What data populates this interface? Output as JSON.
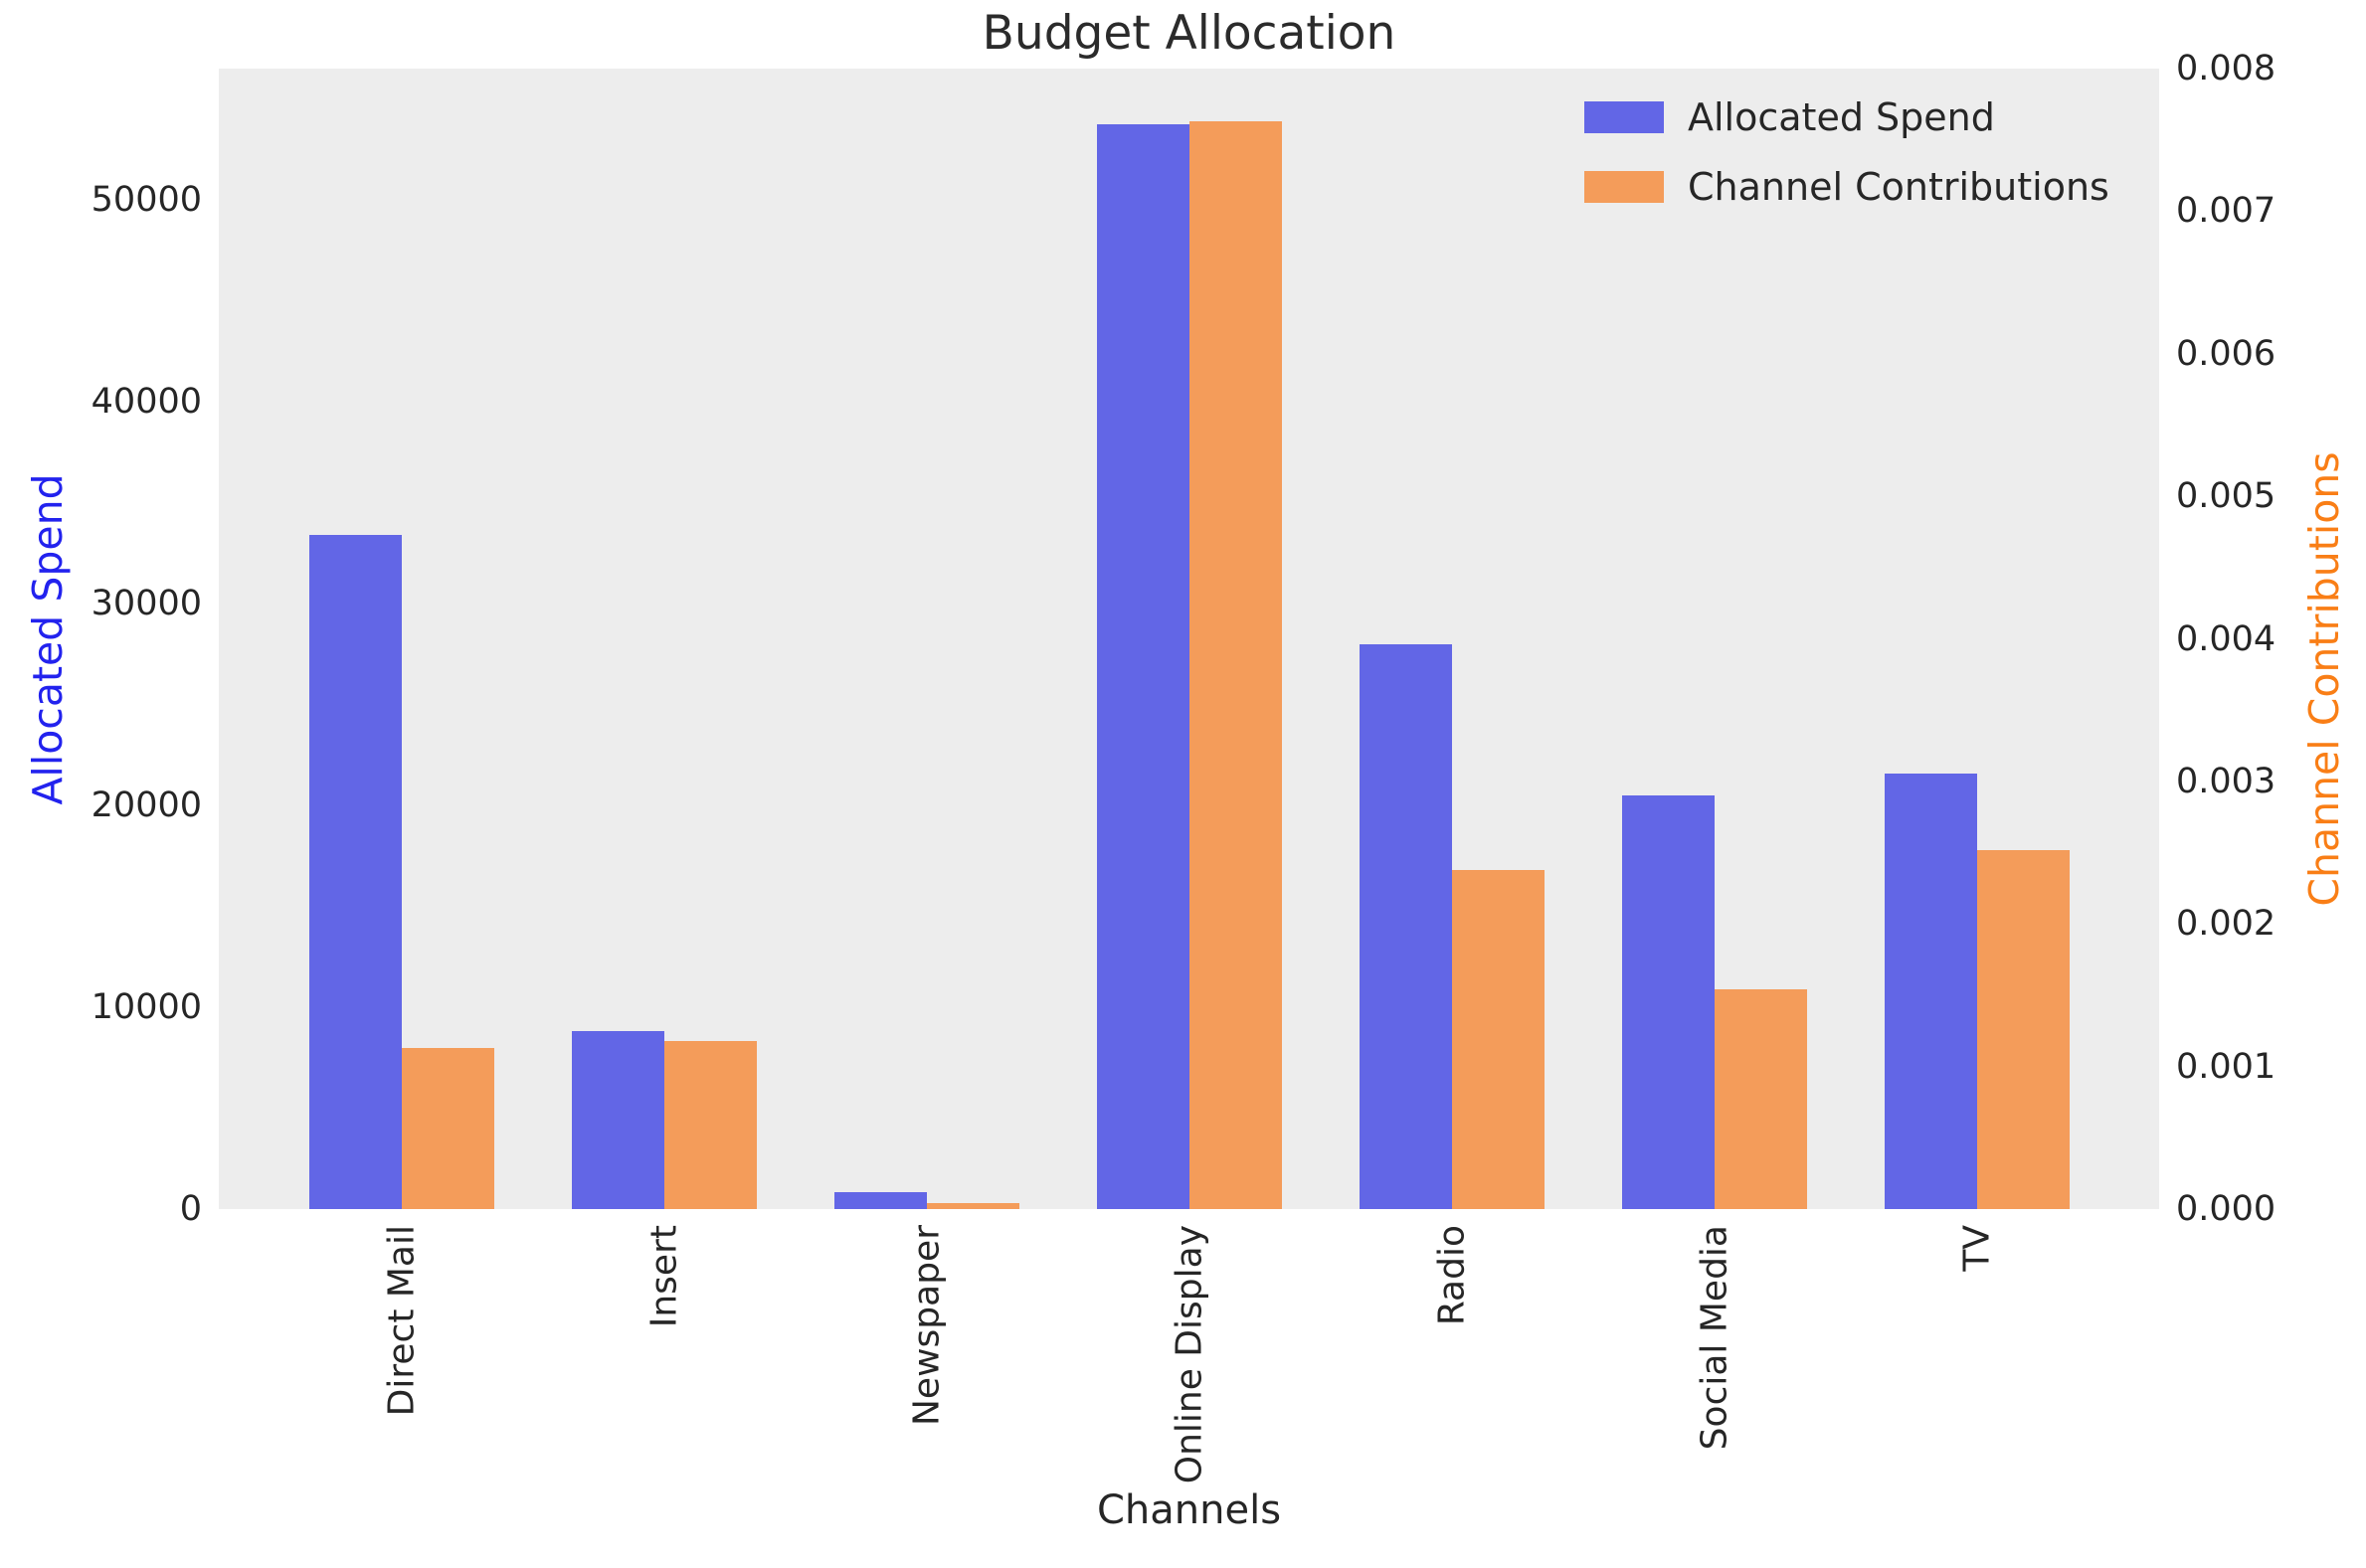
{
  "title": "Budget Allocation",
  "chart_data": {
    "type": "bar",
    "title": "Budget Allocation",
    "xlabel": "Channels",
    "ylabel_left": "Allocated Spend",
    "ylabel_right": "Channel Contributions",
    "categories": [
      "Direct Mail",
      "Insert",
      "Newspaper",
      "Online Display",
      "Radio",
      "Social Media",
      "TV"
    ],
    "series": [
      {
        "name": "Allocated Spend",
        "axis": "left",
        "color": "#6266e6",
        "values": [
          33400,
          8820,
          840,
          53740,
          27980,
          20490,
          21580
        ]
      },
      {
        "name": "Channel Contributions",
        "axis": "right",
        "color": "#f49c5a",
        "values": [
          0.00113,
          0.00118,
          4e-05,
          0.00763,
          0.00238,
          0.00154,
          0.00252
        ]
      }
    ],
    "left_ticks": [
      "0",
      "10000",
      "20000",
      "30000",
      "40000",
      "50000"
    ],
    "left_tick_values": [
      0,
      10000,
      20000,
      30000,
      40000,
      50000
    ],
    "left_axis_max": 56500,
    "right_ticks": [
      "0.000",
      "0.001",
      "0.002",
      "0.003",
      "0.004",
      "0.005",
      "0.006",
      "0.007",
      "0.008"
    ],
    "right_tick_values": [
      0,
      0.001,
      0.002,
      0.003,
      0.004,
      0.005,
      0.006,
      0.007,
      0.008
    ],
    "right_axis_max": 0.008,
    "grid": false,
    "legend_position": "upper right",
    "plot_background": "#ededed",
    "figure_background": "#ffffff",
    "left_label_color": "#2222ee",
    "right_label_color": "#f97e16",
    "tick_color": "#262626"
  }
}
